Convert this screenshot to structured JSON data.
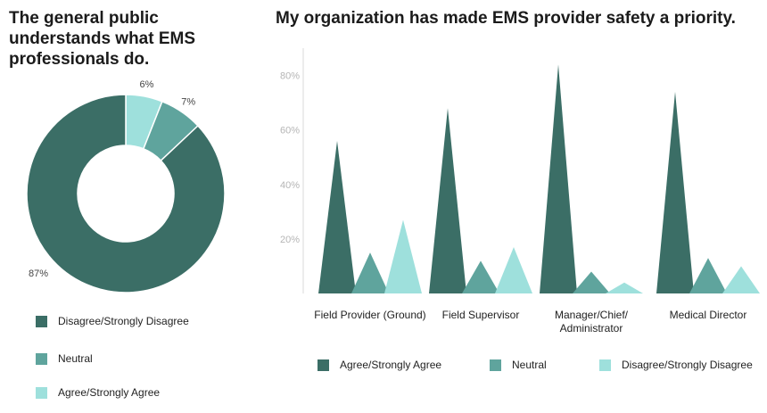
{
  "colors": {
    "dark": "#3b6e66",
    "mid": "#5fa49d",
    "light": "#9ee0dc"
  },
  "chart_data": [
    {
      "type": "pie",
      "variant": "donut",
      "title": "The general public understands what EMS professionals do.",
      "slices": [
        {
          "name": "Disagree/Strongly Disagree",
          "value": 87,
          "label": "87%",
          "color": "#3b6e66"
        },
        {
          "name": "Neutral",
          "value": 7,
          "label": "7%",
          "color": "#5fa49d"
        },
        {
          "name": "Agree/Strongly Agree",
          "value": 6,
          "label": "6%",
          "color": "#9ee0dc"
        }
      ],
      "legend": [
        {
          "label": "Disagree/Strongly Disagree",
          "color": "#3b6e66"
        },
        {
          "label": "Neutral",
          "color": "#5fa49d"
        },
        {
          "label": "Agree/Strongly Agree",
          "color": "#9ee0dc"
        }
      ],
      "legend_position": "bottom"
    },
    {
      "type": "bar",
      "variant": "spike",
      "title": "My organization has made EMS provider safety a priority.",
      "categories": [
        "Field Provider (Ground)",
        "Field Supervisor",
        "Manager/Chief/ Administrator",
        "Medical Director"
      ],
      "category_lines": [
        [
          "Field Provider (Ground)"
        ],
        [
          "Field Supervisor"
        ],
        [
          "Manager/Chief/",
          "Administrator"
        ],
        [
          "Medical Director"
        ]
      ],
      "series": [
        {
          "name": "Agree/Strongly Agree",
          "color": "#3b6e66",
          "values": [
            56,
            68,
            84,
            74
          ]
        },
        {
          "name": "Neutral",
          "color": "#5fa49d",
          "values": [
            15,
            12,
            8,
            13
          ]
        },
        {
          "name": "Disagree/Strongly Disagree",
          "color": "#9ee0dc",
          "values": [
            27,
            17,
            4,
            10
          ]
        }
      ],
      "ylim": [
        0,
        90
      ],
      "yticks": [
        20,
        40,
        60,
        80
      ],
      "ytick_labels": [
        "20%",
        "40%",
        "60%",
        "80%"
      ],
      "grid": false,
      "legend_position": "bottom"
    }
  ]
}
